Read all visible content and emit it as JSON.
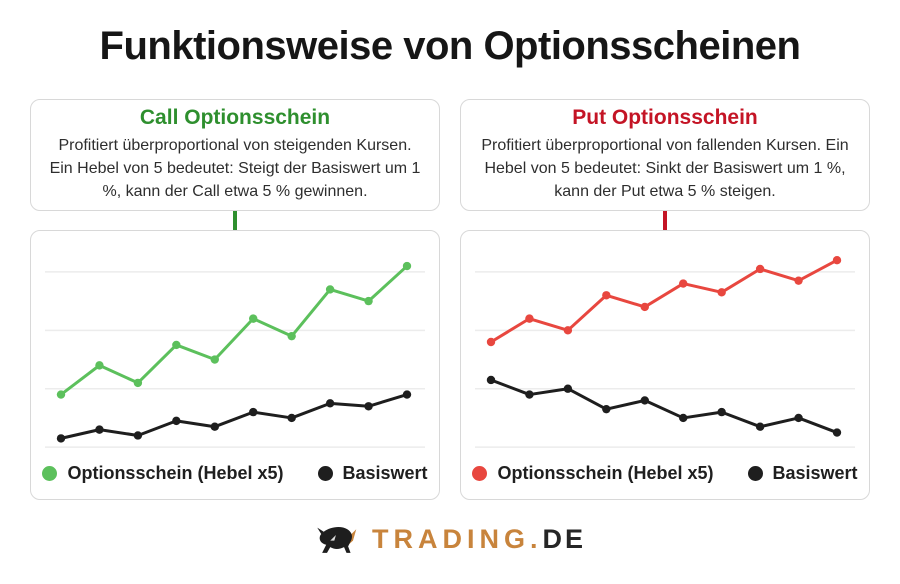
{
  "title": "Funktionsweise von Optionsscheinen",
  "panels": [
    {
      "heading": "Call Optionsschein",
      "body": "Profitiert überproportional von steigenden Kursen. Ein Hebel von 5 bedeutet: Steigt der Basiswert um 1 %, kann der Call etwa 5 % gewinnen.",
      "accent": "#2e8f2e"
    },
    {
      "heading": "Put Optionsschein",
      "body": "Profitiert überproportional von fallenden Kursen. Ein Hebel von 5 bedeutet: Sinkt der Basiswert um 1 %, kann der Put etwa 5 % steigen.",
      "accent": "#c41425"
    }
  ],
  "chart_data": [
    {
      "type": "line",
      "x": [
        1,
        2,
        3,
        4,
        5,
        6,
        7,
        8,
        9,
        10
      ],
      "series": [
        {
          "name": "Optionsschein (Hebel x5)",
          "color": "#5cc05c",
          "values": [
            109,
            114,
            111,
            117.5,
            115,
            122,
            119,
            127,
            125,
            131
          ]
        },
        {
          "name": "Basiswert",
          "color": "#1e1e1e",
          "values": [
            101.5,
            103,
            102,
            104.5,
            103.5,
            106,
            105,
            107.5,
            107,
            109
          ]
        }
      ],
      "ylim": [
        99,
        137
      ],
      "gridlines": [
        100,
        110,
        120,
        130
      ],
      "grid": true,
      "legend_position": "bottom",
      "xlabel": "",
      "ylabel": ""
    },
    {
      "type": "line",
      "x": [
        1,
        2,
        3,
        4,
        5,
        6,
        7,
        8,
        9,
        10
      ],
      "series": [
        {
          "name": "Optionsschein (Hebel x5)",
          "color": "#e8473f",
          "values": [
            118,
            122,
            120,
            126,
            124,
            128,
            126.5,
            130.5,
            128.5,
            132
          ]
        },
        {
          "name": "Basiswert",
          "color": "#1e1e1e",
          "values": [
            111.5,
            109,
            110,
            106.5,
            108,
            105,
            106,
            103.5,
            105,
            102.5
          ]
        }
      ],
      "ylim": [
        99,
        137
      ],
      "gridlines": [
        100,
        110,
        120,
        130
      ],
      "grid": true,
      "legend_position": "bottom",
      "xlabel": "",
      "ylabel": ""
    }
  ],
  "logo": {
    "brand_primary": "TRADING.",
    "brand_secondary": "DE",
    "accent": "#c8843c"
  }
}
